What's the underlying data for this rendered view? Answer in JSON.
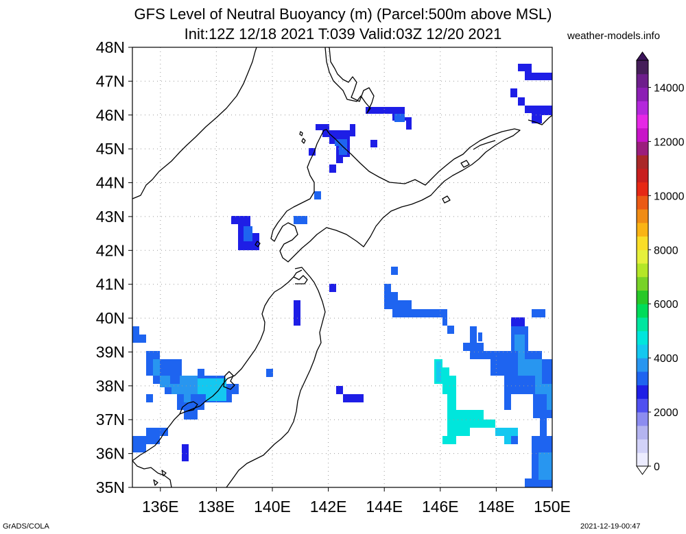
{
  "title": {
    "line1": "GFS Level of Neutral Buoyancy (m) (Parcel:500m above MSL)",
    "line2": "Init:12Z 12/18 2021 T:039 Valid:03Z 12/20 2021"
  },
  "site_label": "weather-models.info",
  "footer": {
    "left": "GrADS/COLA",
    "right": "2021-12-19-00:47"
  },
  "map": {
    "lat_labels": [
      "48N",
      "47N",
      "46N",
      "45N",
      "44N",
      "43N",
      "42N",
      "41N",
      "40N",
      "39N",
      "38N",
      "37N",
      "36N",
      "35N"
    ],
    "lon_labels": [
      "136E",
      "138E",
      "140E",
      "142E",
      "144E",
      "146E",
      "148E",
      "150E"
    ],
    "lat_range": [
      35,
      48
    ],
    "lon_range": [
      135,
      150
    ],
    "gridlines": true,
    "coastline_color": "#000000"
  },
  "colorbar": {
    "labels": [
      "14000",
      "12000",
      "10000",
      "8000",
      "6000",
      "4000",
      "2000",
      "0"
    ],
    "colors": [
      "#ececff",
      "#d2d2f8",
      "#b4b4f0",
      "#8c8cf0",
      "#5050f0",
      "#1e1ee6",
      "#1e64f0",
      "#2896f0",
      "#14c8f0",
      "#00e6dc",
      "#00e6a0",
      "#00dc5a",
      "#28c828",
      "#78d228",
      "#b4e628",
      "#e6f03c",
      "#fade28",
      "#fab414",
      "#f08c14",
      "#eb5a14",
      "#e62814",
      "#c81e1e",
      "#aa2828",
      "#9b1e7d",
      "#c814c8",
      "#e628e6",
      "#b428dc",
      "#8c1eb4",
      "#6e1e8c",
      "#461e5a"
    ]
  }
}
